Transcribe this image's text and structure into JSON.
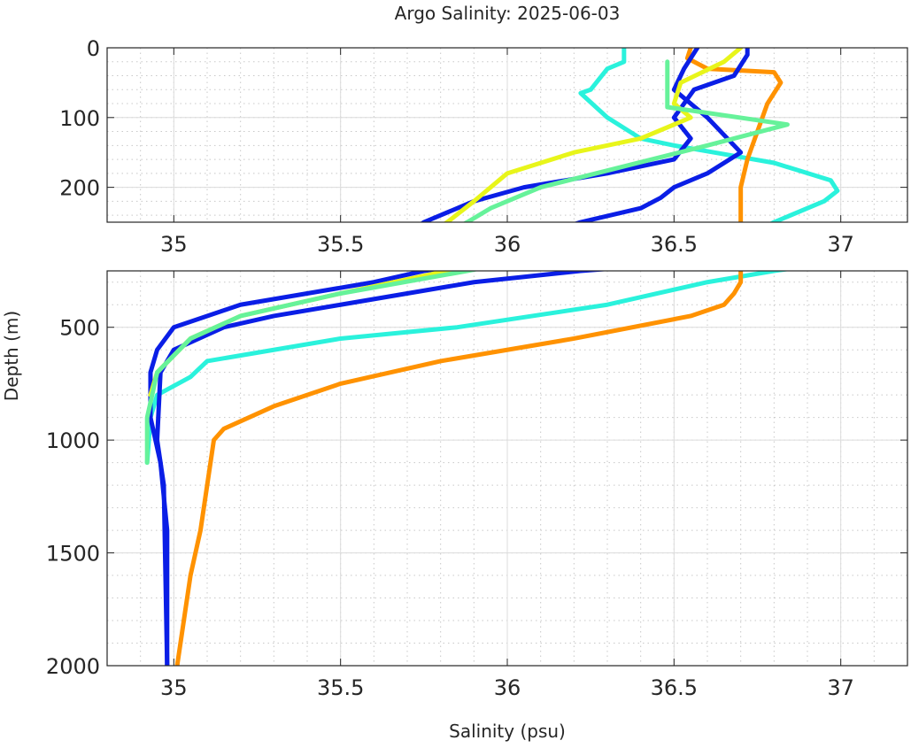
{
  "chart_data": {
    "type": "line",
    "title": "Argo Salinity: 2025-06-03",
    "xlabel": "Salinity (psu)",
    "ylabel": "Depth (m)",
    "grid": true,
    "panels": [
      {
        "name": "upper",
        "xlim": [
          34.8,
          37.2
        ],
        "ylim": [
          0,
          250
        ],
        "xticks": [
          "35",
          "35.5",
          "36",
          "36.5",
          "37"
        ],
        "xtick_values": [
          35,
          35.5,
          36,
          36.5,
          37
        ],
        "yticks": [
          "0",
          "100",
          "200"
        ],
        "ytick_values": [
          0,
          100,
          200
        ]
      },
      {
        "name": "lower",
        "xlim": [
          34.8,
          37.2
        ],
        "ylim": [
          250,
          2000
        ],
        "xticks": [
          "35",
          "35.5",
          "36",
          "36.5",
          "37"
        ],
        "xtick_values": [
          35,
          35.5,
          36,
          36.5,
          37
        ],
        "yticks": [
          "500",
          "1000",
          "1500",
          "2000"
        ],
        "ytick_values": [
          500,
          1000,
          1500,
          2000
        ]
      }
    ],
    "series": [
      {
        "name": "profile-cyan",
        "color": "#2af2dc",
        "points": [
          [
            36.35,
            0
          ],
          [
            36.35,
            20
          ],
          [
            36.3,
            30
          ],
          [
            36.25,
            60
          ],
          [
            36.22,
            65
          ],
          [
            36.3,
            100
          ],
          [
            36.4,
            130
          ],
          [
            36.5,
            140
          ],
          [
            36.62,
            150
          ],
          [
            36.8,
            165
          ],
          [
            36.97,
            190
          ],
          [
            36.99,
            205
          ],
          [
            36.95,
            220
          ],
          [
            36.8,
            250
          ],
          [
            36.6,
            300
          ],
          [
            36.3,
            400
          ],
          [
            35.85,
            500
          ],
          [
            35.5,
            550
          ],
          [
            35.1,
            650
          ],
          [
            35.05,
            720
          ],
          [
            34.95,
            800
          ],
          [
            34.93,
            900
          ],
          [
            34.92,
            1100
          ]
        ]
      },
      {
        "name": "profile-orange",
        "color": "#ff9200",
        "points": [
          [
            36.55,
            0
          ],
          [
            36.54,
            15
          ],
          [
            36.6,
            30
          ],
          [
            36.8,
            35
          ],
          [
            36.82,
            50
          ],
          [
            36.78,
            80
          ],
          [
            36.75,
            120
          ],
          [
            36.72,
            160
          ],
          [
            36.7,
            200
          ],
          [
            36.7,
            250
          ],
          [
            36.7,
            300
          ],
          [
            36.68,
            350
          ],
          [
            36.65,
            400
          ],
          [
            36.55,
            450
          ],
          [
            36.2,
            550
          ],
          [
            35.8,
            650
          ],
          [
            35.5,
            750
          ],
          [
            35.3,
            850
          ],
          [
            35.15,
            950
          ],
          [
            35.12,
            1000
          ],
          [
            35.1,
            1200
          ],
          [
            35.08,
            1400
          ],
          [
            35.05,
            1600
          ],
          [
            35.03,
            1800
          ],
          [
            35.01,
            2000
          ]
        ]
      },
      {
        "name": "profile-blue-a",
        "color": "#0a1ee6",
        "points": [
          [
            36.72,
            0
          ],
          [
            36.72,
            10
          ],
          [
            36.68,
            40
          ],
          [
            36.56,
            60
          ],
          [
            36.5,
            100
          ],
          [
            36.55,
            130
          ],
          [
            36.5,
            160
          ],
          [
            36.3,
            180
          ],
          [
            36.05,
            200
          ],
          [
            35.9,
            220
          ],
          [
            35.75,
            250
          ],
          [
            35.6,
            300
          ],
          [
            35.4,
            350
          ],
          [
            35.2,
            400
          ],
          [
            35.1,
            450
          ],
          [
            35.0,
            500
          ],
          [
            34.95,
            600
          ],
          [
            34.93,
            700
          ],
          [
            34.93,
            900
          ],
          [
            34.96,
            1100
          ],
          [
            34.98,
            1400
          ],
          [
            34.98,
            2000
          ]
        ]
      },
      {
        "name": "profile-blue-b",
        "color": "#0a1ee6",
        "points": [
          [
            36.57,
            0
          ],
          [
            36.53,
            30
          ],
          [
            36.5,
            60
          ],
          [
            36.6,
            100
          ],
          [
            36.7,
            150
          ],
          [
            36.6,
            180
          ],
          [
            36.5,
            200
          ],
          [
            36.46,
            215
          ],
          [
            36.4,
            230
          ],
          [
            36.22,
            250
          ],
          [
            35.9,
            300
          ],
          [
            35.5,
            400
          ],
          [
            35.3,
            450
          ],
          [
            35.15,
            500
          ],
          [
            35.0,
            600
          ],
          [
            34.96,
            700
          ],
          [
            34.95,
            1000
          ],
          [
            34.97,
            1200
          ],
          [
            34.98,
            2000
          ]
        ]
      },
      {
        "name": "profile-yellow",
        "color": "#e8f51a",
        "points": [
          [
            36.7,
            0
          ],
          [
            36.65,
            20
          ],
          [
            36.52,
            50
          ],
          [
            36.5,
            80
          ],
          [
            36.55,
            100
          ],
          [
            36.4,
            130
          ],
          [
            36.2,
            150
          ],
          [
            36.0,
            180
          ],
          [
            35.9,
            220
          ],
          [
            35.82,
            250
          ],
          [
            35.5,
            350
          ],
          [
            35.2,
            450
          ],
          [
            35.05,
            550
          ],
          [
            34.95,
            700
          ],
          [
            34.93,
            800
          ]
        ]
      },
      {
        "name": "profile-green",
        "color": "#66f29a",
        "points": [
          [
            36.48,
            20
          ],
          [
            36.48,
            85
          ],
          [
            36.84,
            110
          ],
          [
            36.6,
            140
          ],
          [
            36.35,
            170
          ],
          [
            36.1,
            200
          ],
          [
            35.95,
            230
          ],
          [
            35.88,
            250
          ],
          [
            35.5,
            350
          ],
          [
            35.2,
            450
          ],
          [
            35.05,
            550
          ],
          [
            34.95,
            700
          ],
          [
            34.92,
            900
          ],
          [
            34.92,
            1100
          ]
        ]
      }
    ]
  }
}
